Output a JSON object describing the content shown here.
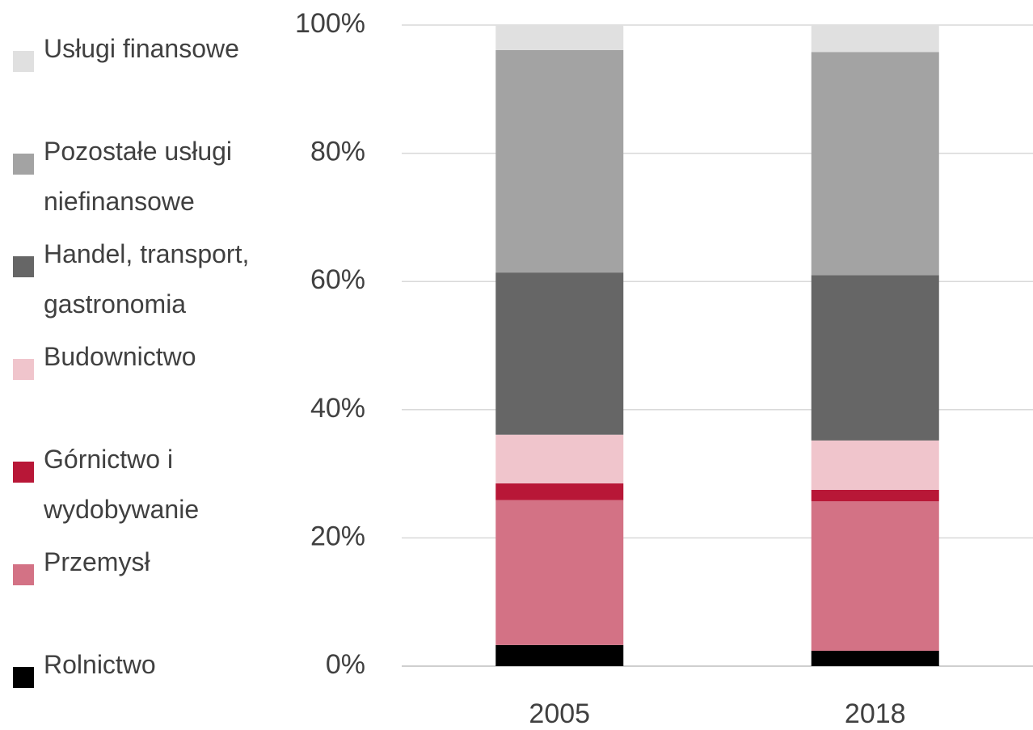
{
  "chart_data": {
    "type": "stacked_bar",
    "categories": [
      "2005",
      "2018"
    ],
    "series": [
      {
        "name": "Rolnictwo",
        "color": "#000000",
        "values": [
          3.3,
          2.4
        ]
      },
      {
        "name": "Przemysł",
        "color": "#d37285",
        "values": [
          22.6,
          23.3
        ]
      },
      {
        "name": "Górnictwo i wydobywanie",
        "color": "#b81737",
        "values": [
          2.6,
          1.8
        ]
      },
      {
        "name": "Budownictwo",
        "color": "#f0c5cc",
        "values": [
          7.6,
          7.7
        ]
      },
      {
        "name": "Handel, transport, gastronomia",
        "color": "#666666",
        "values": [
          25.3,
          25.8
        ]
      },
      {
        "name": "Pozostałe usługi niefinansowe",
        "color": "#a3a3a3",
        "values": [
          34.7,
          34.8
        ]
      },
      {
        "name": "Usługi finansowe",
        "color": "#e0e0e0",
        "values": [
          3.9,
          4.2
        ]
      }
    ],
    "ylim": [
      0,
      100
    ],
    "yticks": [
      {
        "value": 0,
        "label": "0%"
      },
      {
        "value": 20,
        "label": "20%"
      },
      {
        "value": 40,
        "label": "40%"
      },
      {
        "value": 60,
        "label": "60%"
      },
      {
        "value": 80,
        "label": "80%"
      },
      {
        "value": 100,
        "label": "100%"
      }
    ],
    "grid": true,
    "legend": "left"
  }
}
